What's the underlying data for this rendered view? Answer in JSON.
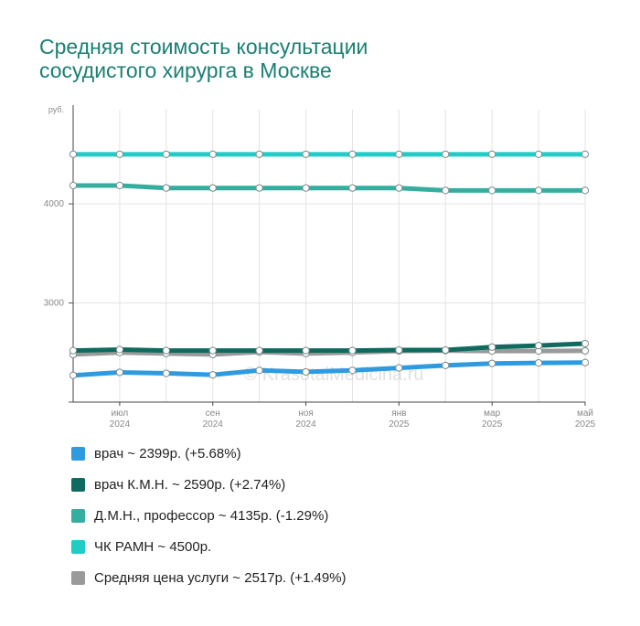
{
  "title": {
    "line1": "Средняя стоимость консультации",
    "line2": "сосудистого хирурга в Москве"
  },
  "watermark": "© KrasotaiMedicina.ru",
  "chart_data": {
    "type": "line",
    "y_unit_label": "руб.",
    "yticks": [
      2000,
      3000,
      4000
    ],
    "ytick_labels": [
      "",
      "3000",
      "4000"
    ],
    "ylim": [
      2000,
      4950
    ],
    "x": [
      "2024-06",
      "2024-07",
      "2024-08",
      "2024-09",
      "2024-10",
      "2024-11",
      "2024-12",
      "2025-01",
      "2025-02",
      "2025-03",
      "2025-04",
      "2025-05"
    ],
    "xtick_labels": [
      {
        "index": 1,
        "line1": "июл",
        "line2": "2024"
      },
      {
        "index": 3,
        "line1": "сен",
        "line2": "2024"
      },
      {
        "index": 5,
        "line1": "ноя",
        "line2": "2024"
      },
      {
        "index": 7,
        "line1": "янв",
        "line2": "2025"
      },
      {
        "index": 9,
        "line1": "мар",
        "line2": "2025"
      },
      {
        "index": 11,
        "line1": "май",
        "line2": "2025"
      }
    ],
    "grid": true,
    "legend_position": "bottom",
    "series": [
      {
        "name": "врач",
        "legend": "врач ~ 2399р. (+5.68%)",
        "color": "#2e9be0",
        "values": [
          2270,
          2300,
          2290,
          2275,
          2320,
          2305,
          2320,
          2345,
          2370,
          2390,
          2395,
          2399
        ]
      },
      {
        "name": "врач К.М.Н.",
        "legend": "врач К.М.Н. ~ 2590р. (+2.74%)",
        "color": "#0f6b5f",
        "values": [
          2520,
          2530,
          2520,
          2520,
          2520,
          2520,
          2520,
          2525,
          2525,
          2555,
          2570,
          2590
        ]
      },
      {
        "name": "Д.М.Н., профессор",
        "legend": "Д.М.Н., профессор ~ 4135р. (-1.29%)",
        "color": "#35ae9f",
        "values": [
          4185,
          4185,
          4160,
          4160,
          4160,
          4160,
          4160,
          4160,
          4135,
          4135,
          4135,
          4135
        ]
      },
      {
        "name": "ЧК РАМН",
        "legend": "ЧК РАМН ~ 4500р.",
        "color": "#1fcdc6",
        "values": [
          4500,
          4500,
          4500,
          4500,
          4500,
          4500,
          4500,
          4500,
          4500,
          4500,
          4500,
          4500
        ]
      },
      {
        "name": "Средняя цена услуги",
        "legend": "Средняя цена услуги ~ 2517р. (+1.49%)",
        "color": "#9a9a9a",
        "values": [
          2480,
          2500,
          2490,
          2480,
          2505,
          2490,
          2500,
          2515,
          2520,
          2515,
          2515,
          2517
        ]
      }
    ]
  }
}
